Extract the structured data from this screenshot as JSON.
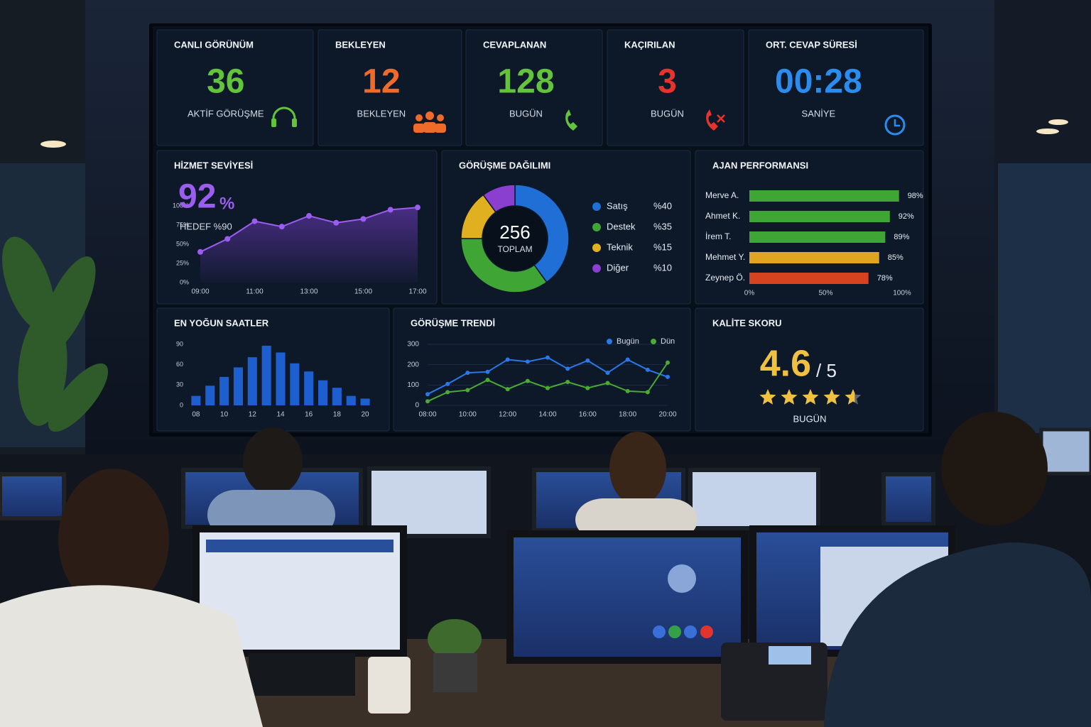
{
  "kpis": [
    {
      "title": "CANLI GÖRÜNÜM",
      "value": 36,
      "label": "AKTİF GÖRÜŞME",
      "color": "#63c43c"
    },
    {
      "title": "BEKLEYEN",
      "value": 12,
      "label": "BEKLEYEN",
      "color": "#f06a2a"
    },
    {
      "title": "CEVAPLANAN",
      "value": 128,
      "label": "BUGÜN",
      "color": "#63c43c"
    },
    {
      "title": "KAÇIRILAN",
      "value": 3,
      "label": "BUGÜN",
      "color": "#e8322d"
    },
    {
      "title": "ORT. CEVAP SÜRESİ",
      "value": "00:28",
      "label": "SANİYE",
      "color": "#2b8cf0"
    }
  ],
  "chart_data": [
    {
      "type": "line",
      "title": "HİZMET SEVİYESİ",
      "value": 92,
      "unit": "%",
      "subtitle": "HEDEF %90",
      "color": "#9b5cf0",
      "categories": [
        "09:00",
        null,
        "11:00",
        null,
        "13:00",
        null,
        "15:00",
        null,
        "17:00"
      ],
      "values": [
        40,
        57,
        80,
        73,
        87,
        78,
        83,
        95,
        98
      ],
      "ylim": [
        0,
        100
      ],
      "yticks": [
        {
          "value": 0,
          "label": "0%"
        },
        {
          "value": 25,
          "label": "25%"
        },
        {
          "value": 50,
          "label": "50%"
        },
        {
          "value": 75,
          "label": "75%"
        },
        {
          "value": 100,
          "label": "100%"
        }
      ],
      "grid": false
    },
    {
      "type": "donut",
      "title": "GÖRÜŞME DAĞILIMI",
      "center_value": 256,
      "center_label": "TOPLAM",
      "categories": [
        "Satış",
        "Destek",
        "Teknik",
        "Diğer"
      ],
      "values": [
        40,
        35,
        15,
        10
      ],
      "value_labels": [
        "%40",
        "%35",
        "%15",
        "%10"
      ],
      "colors": [
        "#1f6fd6",
        "#3fa535",
        "#e0b020",
        "#8a3fd0"
      ]
    },
    {
      "type": "bar",
      "horizontal": true,
      "title": "AJAN PERFORMANSI",
      "categories": [
        "Merve A.",
        "Ahmet K.",
        "İrem T.",
        "Mehmet Y.",
        "Zeynep Ö."
      ],
      "values": [
        98,
        92,
        89,
        85,
        78
      ],
      "value_labels": [
        "98%",
        "92%",
        "89%",
        "85%",
        "78%"
      ],
      "colors": [
        "#3fa535",
        "#3fa535",
        "#3fa535",
        "#e0a520",
        "#d8431f"
      ],
      "xlim": [
        0,
        100
      ],
      "xticks": [
        {
          "value": 0,
          "label": "0%"
        },
        {
          "value": 50,
          "label": "50%"
        },
        {
          "value": 100,
          "label": "100%"
        }
      ]
    },
    {
      "type": "bar",
      "title": "EN YOĞUN SAATLER",
      "color": "#1e5fd0",
      "categories": [
        "08",
        null,
        "10",
        null,
        "12",
        null,
        "14",
        null,
        "16",
        null,
        "18",
        null,
        "20"
      ],
      "values": [
        14,
        29,
        42,
        56,
        71,
        88,
        78,
        62,
        50,
        37,
        26,
        14,
        10
      ],
      "ylim": [
        0,
        90
      ],
      "yticks": [
        0,
        30,
        60,
        90
      ],
      "grid": false
    },
    {
      "type": "line",
      "title": "GÖRÜŞME TRENDİ",
      "legend": "top-right",
      "categories": [
        "08:00",
        null,
        "10:00",
        null,
        "12:00",
        null,
        "14:00",
        null,
        "16:00",
        null,
        "18:00",
        null,
        "20:00"
      ],
      "series": [
        {
          "name": "Bugün",
          "color": "#2a78e8",
          "values": [
            55,
            105,
            160,
            165,
            225,
            215,
            235,
            180,
            220,
            160,
            225,
            175,
            140
          ]
        },
        {
          "name": "Dün",
          "color": "#4aaa32",
          "values": [
            20,
            65,
            75,
            125,
            80,
            120,
            85,
            115,
            85,
            110,
            70,
            65,
            210
          ]
        }
      ],
      "ylim": [
        0,
        300
      ],
      "yticks": [
        0,
        100,
        200,
        300
      ],
      "grid": true
    },
    {
      "type": "rating",
      "title": "KALİTE SKORU",
      "value": 4.6,
      "scale_label": "/ 5",
      "max": 5,
      "subtitle": "BUGÜN",
      "color": "#f0c040"
    }
  ]
}
